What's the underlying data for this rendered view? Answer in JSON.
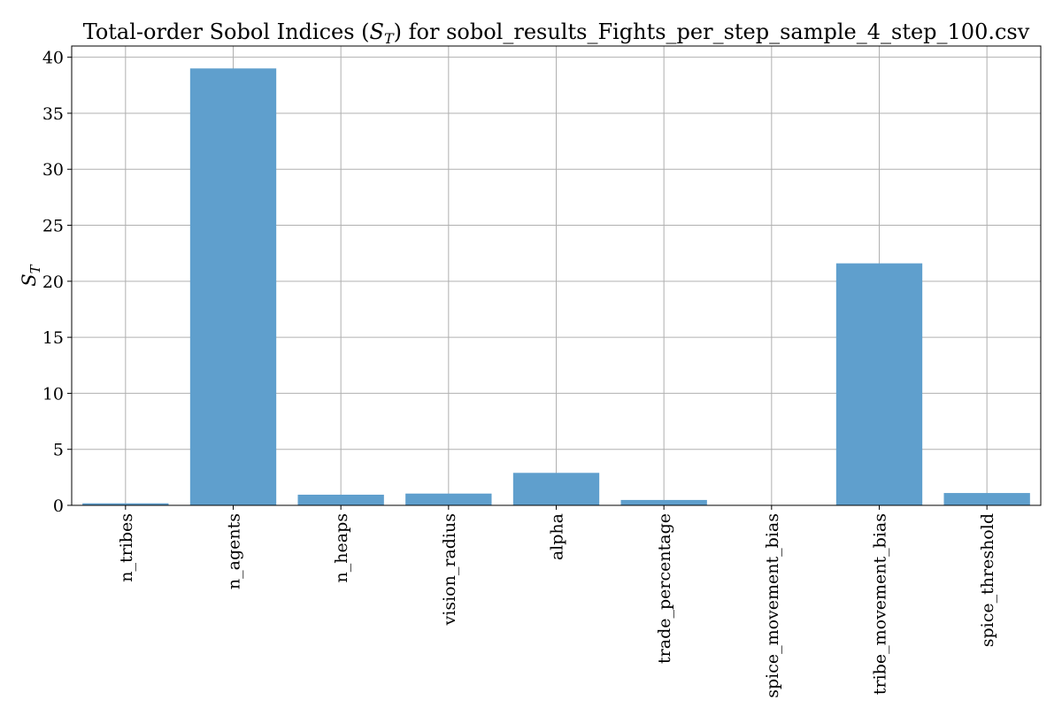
{
  "chart_data": {
    "type": "bar",
    "title": "Total-order Sobol Indices (S_T) for sobol_results_Fights_per_step_sample_4_step_100.csv",
    "title_parts": {
      "prefix": "Total-order Sobol Indices (",
      "symbol": "S",
      "subscript": "T",
      "suffix": ") for sobol_results_Fights_per_step_sample_4_step_100.csv"
    },
    "xlabel": "",
    "ylabel": "S_T",
    "ylabel_parts": {
      "symbol": "S",
      "subscript": "T"
    },
    "categories": [
      "n_tribes",
      "n_agents",
      "n_heaps",
      "vision_radius",
      "alpha",
      "trade_percentage",
      "spice_movement_bias",
      "tribe_movement_bias",
      "spice_threshold"
    ],
    "values": [
      0.18,
      39.0,
      0.95,
      1.05,
      2.9,
      0.48,
      0.0,
      21.6,
      1.1
    ],
    "ylim": [
      0,
      41
    ],
    "yticks": [
      0,
      5,
      10,
      15,
      20,
      25,
      30,
      35,
      40
    ],
    "grid": true,
    "bar_color": "#5f9fcd"
  }
}
